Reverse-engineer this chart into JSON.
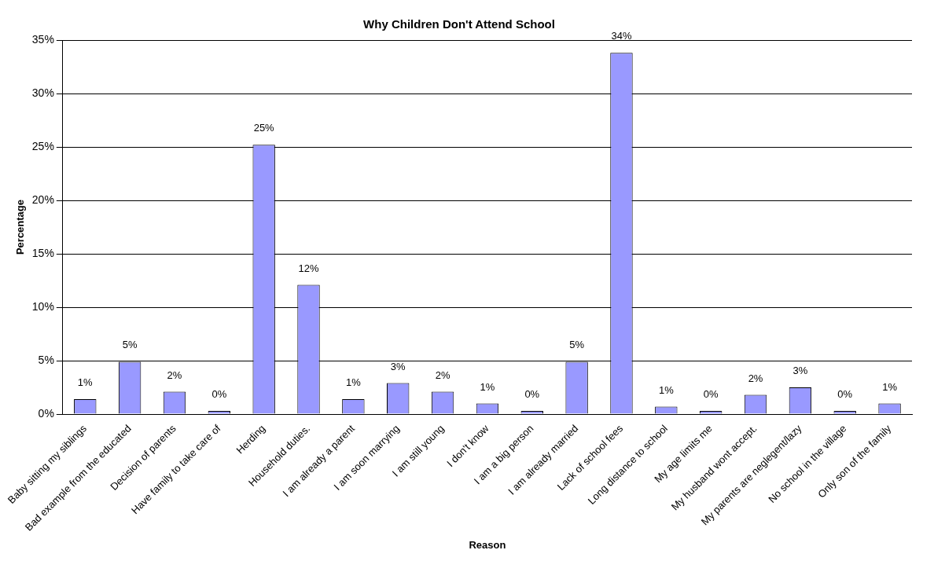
{
  "chart_data": {
    "type": "bar",
    "title": "Why Children Don't Attend School",
    "xlabel": "Reason",
    "ylabel": "Percentage",
    "categories": [
      "Baby sitting my siblings",
      "Bad example from the educated",
      "Decision of parents",
      "Have family to take care of",
      "Herding",
      "Household duties.",
      "I am already a parent",
      "I am soon marrying",
      "I am still young",
      "I don't know",
      "I am a big person",
      "I am already married",
      "Lack of school fees",
      "Long distance to school",
      "My age limits me",
      "My husband wont accept.",
      "My parents are neglegent/lazy",
      "No school in the village",
      "Only son of the family"
    ],
    "values": [
      1.4,
      4.9,
      2.1,
      0.3,
      25.2,
      12.1,
      1.4,
      2.9,
      2.1,
      1.0,
      0.3,
      4.9,
      33.8,
      0.7,
      0.3,
      1.8,
      2.5,
      0.3,
      1.0
    ],
    "value_labels": [
      "1%",
      "5%",
      "2%",
      "0%",
      "25%",
      "12%",
      "1%",
      "3%",
      "2%",
      "1%",
      "0%",
      "5%",
      "34%",
      "1%",
      "0%",
      "2%",
      "3%",
      "0%",
      "1%"
    ],
    "color": "#9999ff",
    "ylim": [
      0,
      35
    ],
    "yticks": [
      {
        "value": 0,
        "label": "0%"
      },
      {
        "value": 5,
        "label": "5%"
      },
      {
        "value": 10,
        "label": "10%"
      },
      {
        "value": 15,
        "label": "15%"
      },
      {
        "value": 20,
        "label": "20%"
      },
      {
        "value": 25,
        "label": "25%"
      },
      {
        "value": 30,
        "label": "30%"
      },
      {
        "value": 35,
        "label": "35%"
      }
    ],
    "grid": "y",
    "legend": false
  }
}
